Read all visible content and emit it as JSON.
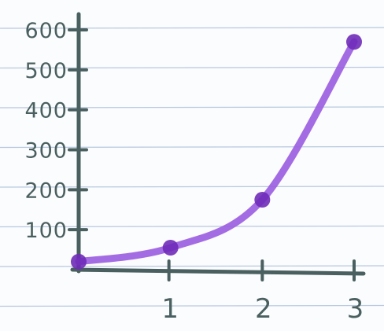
{
  "chart_data": {
    "type": "line",
    "title": "",
    "xlabel": "",
    "ylabel": "",
    "x": [
      0,
      1,
      2,
      3
    ],
    "series": [
      {
        "values": [
          20,
          55,
          175,
          570
        ],
        "color": "#9a5ce0",
        "marker_color": "#6f2bb8"
      }
    ],
    "x_ticks": [
      1,
      2,
      3
    ],
    "x_tick_labels": [
      "1",
      "2",
      "3"
    ],
    "y_ticks": [
      100,
      200,
      300,
      400,
      500,
      600
    ],
    "y_tick_labels": [
      "100",
      "200",
      "300",
      "400",
      "500",
      "600"
    ],
    "xlim": [
      0,
      3
    ],
    "ylim": [
      0,
      600
    ],
    "grid": false,
    "legend": "none",
    "background": "ruled paper",
    "axis_color": "#4a5f5f",
    "rule_color": "#b8c8e0"
  }
}
